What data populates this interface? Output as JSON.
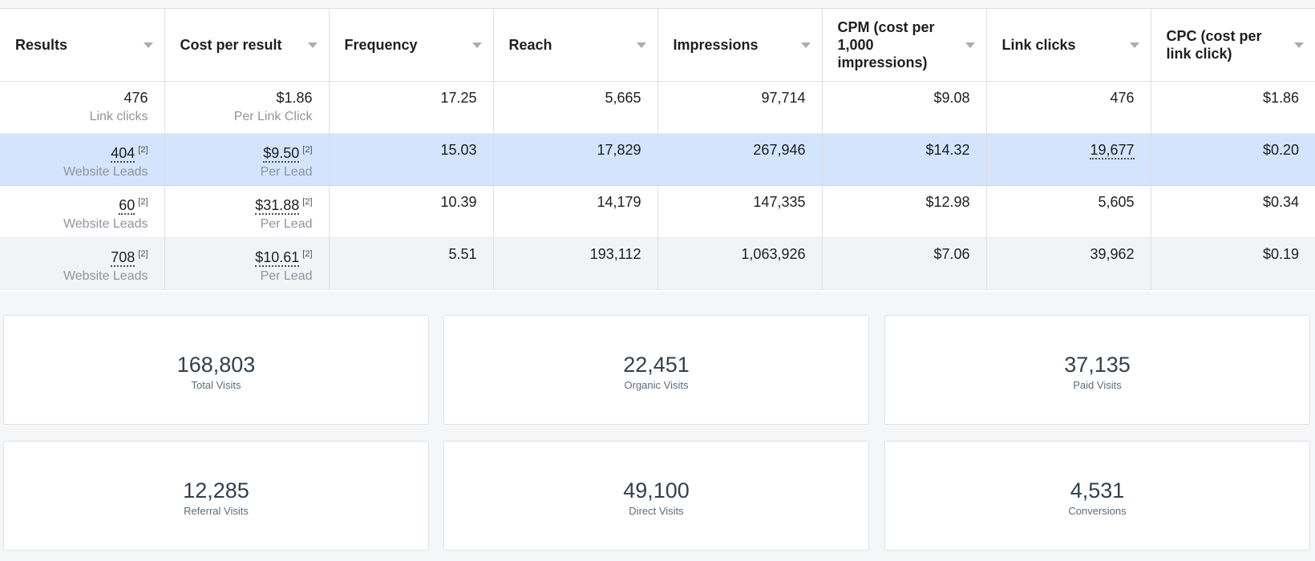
{
  "table": {
    "columns": [
      "Results",
      "Cost per result",
      "Frequency",
      "Reach",
      "Impressions",
      "CPM (cost per 1,000 impressions)",
      "Link clicks",
      "CPC (cost per link click)"
    ],
    "rows": [
      {
        "results": "476",
        "results_sub": "Link clicks",
        "cost": "$1.86",
        "cost_sub": "Per Link Click",
        "frequency": "17.25",
        "reach": "5,665",
        "impressions": "97,714",
        "cpm": "$9.08",
        "link_clicks": "476",
        "cpc": "$1.86"
      },
      {
        "results": "404",
        "results_fn": "[2]",
        "results_sub": "Website Leads",
        "cost": "$9.50",
        "cost_fn": "[2]",
        "cost_sub": "Per Lead",
        "frequency": "15.03",
        "reach": "17,829",
        "impressions": "267,946",
        "cpm": "$14.32",
        "link_clicks": "19,677",
        "cpc": "$0.20"
      },
      {
        "results": "60",
        "results_fn": "[2]",
        "results_sub": "Website Leads",
        "cost": "$31.88",
        "cost_fn": "[2]",
        "cost_sub": "Per Lead",
        "frequency": "10.39",
        "reach": "14,179",
        "impressions": "147,335",
        "cpm": "$12.98",
        "link_clicks": "5,605",
        "cpc": "$0.34"
      },
      {
        "results": "708",
        "results_fn": "[2]",
        "results_sub": "Website Leads",
        "cost": "$10.61",
        "cost_fn": "[2]",
        "cost_sub": "Per Lead",
        "frequency": "5.51",
        "reach": "193,112",
        "impressions": "1,063,926",
        "cpm": "$7.06",
        "link_clicks": "39,962",
        "cpc": "$0.19"
      }
    ]
  },
  "stats": [
    {
      "value": "168,803",
      "label": "Total Visits"
    },
    {
      "value": "22,451",
      "label": "Organic Visits"
    },
    {
      "value": "37,135",
      "label": "Paid Visits"
    },
    {
      "value": "12,285",
      "label": "Referral Visits"
    },
    {
      "value": "49,100",
      "label": "Direct Visits"
    },
    {
      "value": "4,531",
      "label": "Conversions"
    }
  ],
  "colors": {
    "selected_row": "#d3e4fc",
    "alt_row": "#f2f3f5",
    "subtext": "#90949c",
    "stat_value": "#33404d"
  },
  "icons": {
    "sort": "caret-down-icon"
  }
}
